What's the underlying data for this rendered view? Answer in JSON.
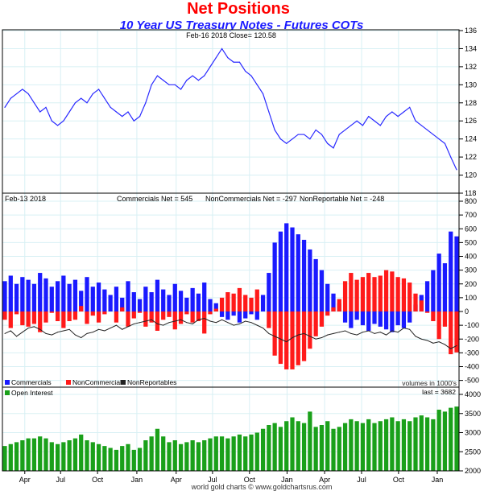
{
  "title": "Net Positions",
  "subtitle": "10 Year US Treasury Notes - Futures COTs",
  "footer": "world gold charts © www.goldchartsrus.com",
  "colors": {
    "title": "#ff0000",
    "subtitle": "#1a1aff",
    "price": "#2a2aff",
    "commercials": "#1a1aff",
    "noncommercials": "#ff1a1a",
    "nonreportables": "#222222",
    "oi": "#1aa01a",
    "grid": "#d8f0f4"
  },
  "chart_data": [
    {
      "type": "line",
      "name": "price",
      "header": "Feb-16  2018   Close= 120.58",
      "ylim": [
        118,
        136
      ],
      "yticks": [
        118,
        120,
        122,
        124,
        126,
        128,
        130,
        132,
        134,
        136
      ],
      "values": [
        127.5,
        128.5,
        129,
        129.5,
        129,
        128,
        127,
        127.5,
        126,
        125.5,
        126,
        127,
        128,
        128.5,
        128,
        129,
        129.5,
        128.5,
        127.5,
        127,
        126.5,
        127,
        126,
        126.5,
        128,
        130,
        131,
        130.5,
        130,
        130,
        129.5,
        130.5,
        131,
        130.5,
        131,
        132,
        133,
        134,
        133,
        132.5,
        132.5,
        131.5,
        131,
        130,
        129,
        127,
        125,
        124,
        123.5,
        124,
        124.5,
        124.5,
        124,
        125,
        124.5,
        123.5,
        123,
        124.5,
        125,
        125.5,
        126,
        125.5,
        126.5,
        126,
        125.5,
        126.5,
        127,
        126.5,
        127,
        127.5,
        126,
        125.5,
        125,
        124.5,
        124,
        123.5,
        122,
        120.6
      ]
    },
    {
      "type": "bar",
      "name": "net positions",
      "date": "Feb-13  2018",
      "labels": {
        "commercials": "Commercials Net = 545",
        "noncommercials": "NonCommercials Net = -297",
        "nonreportables": "NonReportable Net = -248"
      },
      "legend": [
        "Commercials",
        "NonCommercials",
        "NonReportables"
      ],
      "units_note": "volumes in 1000's",
      "ylim": [
        -500,
        800
      ],
      "yticks": [
        -500,
        -400,
        -300,
        -200,
        -100,
        0,
        100,
        200,
        300,
        400,
        500,
        600,
        700,
        800
      ],
      "series": [
        {
          "name": "Commercials",
          "values": [
            220,
            260,
            200,
            250,
            230,
            200,
            280,
            240,
            180,
            220,
            260,
            200,
            230,
            150,
            250,
            180,
            210,
            160,
            120,
            180,
            100,
            220,
            140,
            90,
            180,
            140,
            230,
            160,
            120,
            200,
            150,
            100,
            170,
            130,
            210,
            90,
            60,
            -40,
            -60,
            -30,
            -80,
            -50,
            -20,
            -60,
            120,
            280,
            500,
            580,
            640,
            610,
            560,
            520,
            450,
            380,
            300,
            200,
            130,
            60,
            -80,
            -120,
            -60,
            -100,
            -140,
            -90,
            -110,
            -130,
            -150,
            -100,
            -120,
            -80,
            50,
            120,
            220,
            300,
            420,
            350,
            580,
            545
          ]
        },
        {
          "name": "NonCommercials",
          "values": [
            -60,
            -120,
            -20,
            -100,
            -110,
            -90,
            -150,
            -80,
            -10,
            -70,
            -120,
            -70,
            -60,
            40,
            -90,
            -30,
            -80,
            -20,
            0,
            -80,
            30,
            -110,
            -50,
            -10,
            -110,
            -80,
            -140,
            -60,
            -40,
            -130,
            -90,
            -20,
            -80,
            -70,
            -160,
            -20,
            20,
            100,
            140,
            130,
            170,
            120,
            100,
            160,
            0,
            -120,
            -320,
            -380,
            -420,
            -420,
            -390,
            -360,
            -270,
            -180,
            -110,
            -30,
            30,
            90,
            220,
            280,
            230,
            250,
            280,
            250,
            260,
            300,
            290,
            250,
            240,
            210,
            130,
            80,
            -10,
            -70,
            -200,
            -110,
            -310,
            -297
          ]
        },
        {
          "name": "NonReportables",
          "values": [
            -160,
            -140,
            -180,
            -150,
            -120,
            -110,
            -130,
            -160,
            -170,
            -150,
            -140,
            -130,
            -170,
            -190,
            -160,
            -150,
            -130,
            -140,
            -120,
            -100,
            -130,
            -110,
            -90,
            -80,
            -70,
            -60,
            -90,
            -100,
            -80,
            -70,
            -60,
            -80,
            -90,
            -60,
            -50,
            -70,
            -80,
            -60,
            -80,
            -100,
            -90,
            -70,
            -80,
            -100,
            -120,
            -160,
            -180,
            -200,
            -220,
            -190,
            -170,
            -160,
            -180,
            -200,
            -190,
            -170,
            -160,
            -150,
            -140,
            -160,
            -170,
            -150,
            -140,
            -160,
            -150,
            -170,
            -140,
            -150,
            -120,
            -130,
            -180,
            -200,
            -210,
            -230,
            -220,
            -240,
            -270,
            -248
          ]
        }
      ]
    },
    {
      "type": "bar",
      "name": "open interest",
      "legend": "Open Interest",
      "last": "last = 3682",
      "ylim": [
        2000,
        4000
      ],
      "yticks": [
        2000,
        2500,
        3000,
        3500,
        4000
      ],
      "values": [
        2650,
        2700,
        2750,
        2800,
        2850,
        2850,
        2900,
        2850,
        2750,
        2700,
        2750,
        2800,
        2850,
        2950,
        2800,
        2750,
        2700,
        2650,
        2600,
        2550,
        2650,
        2700,
        2550,
        2600,
        2800,
        2900,
        3100,
        2900,
        2750,
        2800,
        2700,
        2750,
        2800,
        2750,
        2800,
        2850,
        2900,
        2900,
        2850,
        2900,
        2950,
        2900,
        2950,
        3000,
        3100,
        3200,
        3250,
        3150,
        3300,
        3400,
        3300,
        3250,
        3550,
        3150,
        3200,
        3300,
        3100,
        3150,
        3250,
        3350,
        3300,
        3250,
        3350,
        3250,
        3300,
        3350,
        3400,
        3300,
        3350,
        3300,
        3400,
        3450,
        3400,
        3350,
        3600,
        3550,
        3650,
        3682
      ]
    }
  ],
  "x_ticks": [
    {
      "label": "Apr",
      "index": 3.4
    },
    {
      "label": "Jul",
      "index": 9.5
    },
    {
      "label": "Oct",
      "index": 15.8
    },
    {
      "label": "Jan",
      "index": 22.5
    },
    {
      "label": "Apr",
      "index": 29.2
    },
    {
      "label": "Jul",
      "index": 35.4
    },
    {
      "label": "Oct",
      "index": 41.7
    },
    {
      "label": "Jan",
      "index": 48.1
    },
    {
      "label": "Apr",
      "index": 54.5
    },
    {
      "label": "Jul",
      "index": 60.8
    },
    {
      "label": "Oct",
      "index": 67.1
    },
    {
      "label": "Jan",
      "index": 73.7
    }
  ]
}
